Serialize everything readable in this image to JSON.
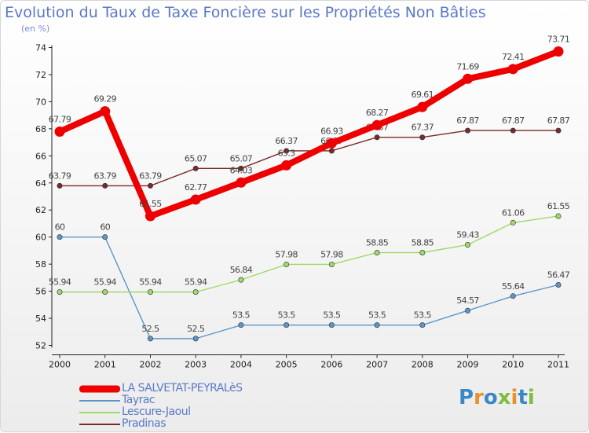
{
  "chart_title": "Evolution du Taux de Taxe Foncière sur les Propriétés Non Bâties",
  "chart_subtitle": "(en %)",
  "logo_text": "Proxiti",
  "colors": {
    "title": "#5a78c8",
    "LA SALVETAT-PEYRALèS": "#ee0000",
    "Tayrac": "#5e95c8",
    "Lescure-Jaoul": "#9fd96a",
    "Pradinas": "#7a2a2a"
  },
  "chart_data": {
    "type": "line",
    "title": "Evolution du Taux de Taxe Foncière sur les Propriétés Non Bâties",
    "ylabel": "(en %)",
    "xlabel": "",
    "ylim": [
      52,
      74
    ],
    "yticks": [
      52,
      54,
      56,
      58,
      60,
      62,
      64,
      66,
      68,
      70,
      72,
      74
    ],
    "grid": false,
    "legend_position": "bottom-left",
    "categories": [
      "2000",
      "2001",
      "2002",
      "2003",
      "2004",
      "2005",
      "2006",
      "2007",
      "2008",
      "2009",
      "2010",
      "2011"
    ],
    "series": [
      {
        "name": "LA SALVETAT-PEYRALèS",
        "color": "#ee0000",
        "emphasis": true,
        "values": [
          67.79,
          69.29,
          61.55,
          62.77,
          64.03,
          65.3,
          66.93,
          68.27,
          69.61,
          71.69,
          72.41,
          73.71
        ],
        "labels": [
          "67.79",
          "69.29",
          "61.55",
          "62.77",
          "64.03",
          "65.3",
          "66.93",
          "68.27",
          "69.61",
          "71.69",
          "72.41",
          "73.71"
        ]
      },
      {
        "name": "Tayrac",
        "color": "#5e95c8",
        "values": [
          60,
          60,
          52.5,
          52.5,
          53.5,
          53.5,
          53.5,
          53.5,
          53.5,
          54.57,
          55.64,
          56.47
        ],
        "labels": [
          "60",
          "60",
          "52.5",
          "52.5",
          "53.5",
          "53.5",
          "53.5",
          "53.5",
          "53.5",
          "54.57",
          "55.64",
          "56.47"
        ]
      },
      {
        "name": "Lescure-Jaoul",
        "color": "#9fd96a",
        "values": [
          55.94,
          55.94,
          55.94,
          55.94,
          56.84,
          57.98,
          57.98,
          58.85,
          58.85,
          59.43,
          61.06,
          61.55
        ],
        "labels": [
          "55.94",
          "55.94",
          "55.94",
          "55.94",
          "56.84",
          "57.98",
          "57.98",
          "58.85",
          "58.85",
          "59.43",
          "61.06",
          "61.55"
        ]
      },
      {
        "name": "Pradinas",
        "color": "#7a2a2a",
        "values": [
          63.79,
          63.79,
          63.79,
          65.07,
          65.07,
          66.37,
          66.37,
          67.37,
          67.37,
          67.87,
          67.87,
          67.87
        ],
        "labels": [
          "63.79",
          "63.79",
          "63.79",
          "65.07",
          "65.07",
          "66.37",
          "66.37",
          "67.37",
          "67.37",
          "67.87",
          "67.87",
          "67.87"
        ]
      }
    ]
  }
}
